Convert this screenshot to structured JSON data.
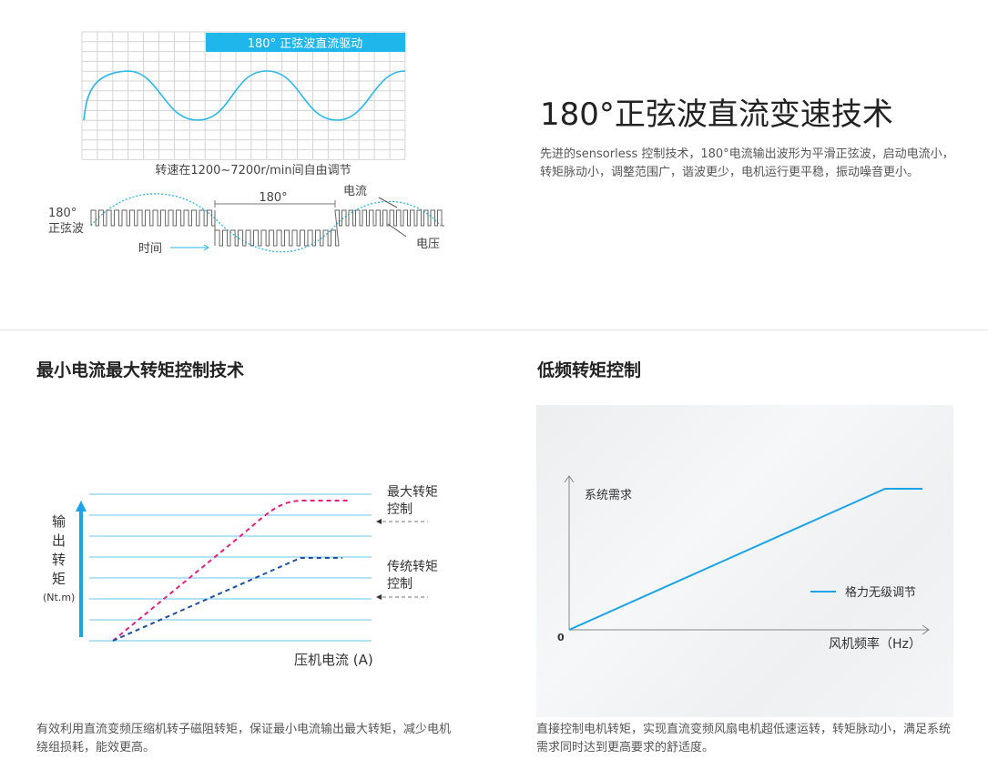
{
  "sine_section": {
    "banner": "180° 正弦波直流驱动",
    "caption": "转速在1200~7200r/min间自由调节",
    "label_sine": [
      "180°",
      "正弦波"
    ],
    "label_time": "时间",
    "label_180": "180°",
    "label_current": "电流",
    "label_voltage": "电压",
    "title": "180°正弦波直流变速技术",
    "desc": "先进的sensorless 控制技术，180°电流输出波形为平滑正弦波，启动电流小，转矩脉动小，调整范围广，谐波更少，电机运行更平稳，振动噪音更小。"
  },
  "torque_section": {
    "title": "最小电流最大转矩控制技术",
    "y_label": [
      "输",
      "出",
      "转",
      "矩"
    ],
    "y_unit": "(Nt.m)",
    "x_label": "压机电流 (A)",
    "legend_max": [
      "最大转矩",
      "控制"
    ],
    "legend_trad": [
      "传统转矩",
      "控制"
    ],
    "desc": "有效利用直流变频压缩机转子磁阻转矩，保证最小电流输出最大转矩，减少电机绕组损耗，能效更高。",
    "colors": {
      "max": "#e5207e",
      "traditional": "#1f4fa3",
      "grid": "#6cc4ee"
    }
  },
  "lowfreq_section": {
    "title": "低频转矩控制",
    "y_label": "系统需求",
    "x_label": "风机频率（Hz）",
    "origin": "0",
    "legend": "格力无级调节",
    "desc": "直接控制电机转矩，实现直流变频风扇电机超低速运转，转矩脉动小，满足系统需求同时达到更高要求的舒适度。",
    "colors": {
      "line": "#1aa3e8"
    }
  }
}
